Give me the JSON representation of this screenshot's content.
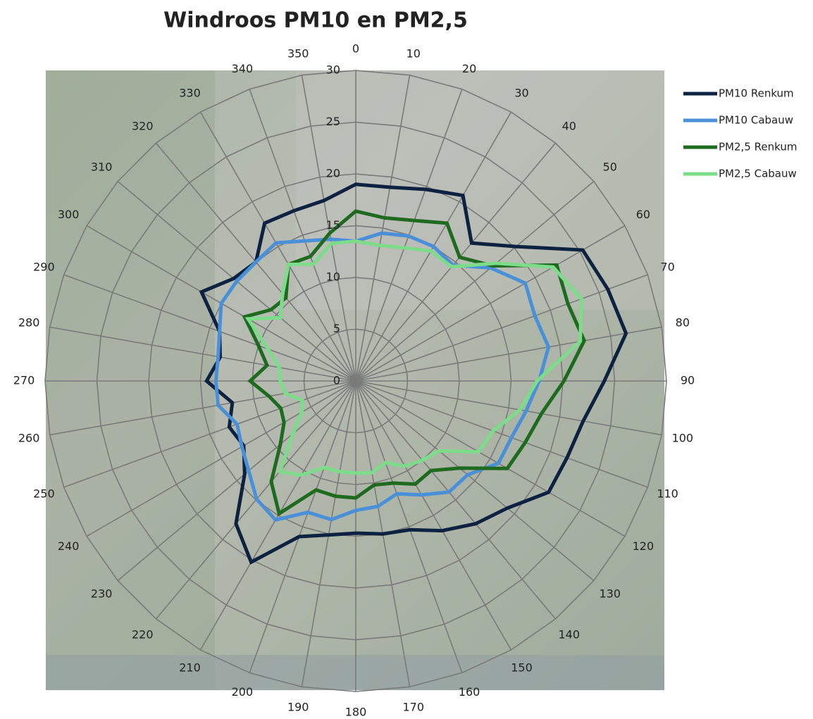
{
  "chart_data": {
    "type": "radar",
    "title": "Windroos PM10 en PM2,5",
    "categories": [
      "0",
      "10",
      "20",
      "30",
      "40",
      "50",
      "60",
      "70",
      "80",
      "90",
      "100",
      "110",
      "120",
      "130",
      "140",
      "150",
      "160",
      "170",
      "180",
      "190",
      "200",
      "210",
      "220",
      "230",
      "240",
      "250",
      "260",
      "270",
      "280",
      "290",
      "300",
      "310",
      "320",
      "330",
      "340",
      "350"
    ],
    "rlim": [
      0,
      30
    ],
    "rticks": [
      0,
      5,
      10,
      15,
      20,
      25,
      30
    ],
    "grid": true,
    "legend": "right",
    "series": [
      {
        "name": "PM10 Renkum",
        "color": "#0d2240",
        "values": [
          19.0,
          19.0,
          19.7,
          20.7,
          17.4,
          20.2,
          25.3,
          25.9,
          26.5,
          24.0,
          22.3,
          21.7,
          21.5,
          19.1,
          18.0,
          16.7,
          15.3,
          15.0,
          14.7,
          15.1,
          16.0,
          20.2,
          18.0,
          14.0,
          12.5,
          13.0,
          12.1,
          14.4,
          13.3,
          14.0,
          17.2,
          15.4,
          15.0,
          17.6,
          17.5,
          17.7
        ]
      },
      {
        "name": "PM10 Cabauw",
        "color": "#4a90d9",
        "values": [
          13.5,
          14.5,
          14.9,
          15.0,
          14.6,
          17.0,
          18.9,
          18.4,
          18.9,
          17.7,
          16.7,
          16.0,
          15.9,
          14.1,
          14.0,
          12.7,
          11.6,
          12.3,
          12.5,
          13.6,
          13.5,
          15.5,
          14.9,
          13.5,
          12.7,
          12.2,
          13.5,
          13.5,
          13.5,
          14.0,
          15.0,
          15.0,
          15.0,
          15.4,
          14.4,
          13.9
        ]
      },
      {
        "name": "PM2,5 Renkum",
        "color": "#1e6b20",
        "values": [
          16.4,
          16.0,
          16.5,
          17.6,
          15.6,
          17.3,
          22.4,
          21.8,
          22.4,
          20.1,
          18.2,
          17.4,
          16.9,
          13.1,
          11.3,
          11.5,
          10.5,
          10.2,
          11.3,
          11.3,
          11.2,
          14.8,
          12.7,
          9.5,
          8.0,
          7.7,
          8.5,
          10.2,
          8.7,
          10.0,
          12.4,
          10.7,
          10.5,
          13.0,
          12.8,
          14.5
        ]
      },
      {
        "name": "PM2,5 Cabauw",
        "color": "#7ddc8a",
        "values": [
          13.5,
          13.3,
          13.7,
          14.5,
          14.4,
          17.7,
          22.0,
          23.2,
          22.0,
          17.5,
          16.1,
          14.1,
          13.7,
          10.5,
          10.0,
          9.5,
          8.4,
          9.0,
          8.9,
          8.9,
          8.9,
          10.5,
          11.4,
          7.9,
          6.0,
          5.5,
          6.9,
          7.3,
          7.5,
          9.0,
          12.0,
          9.5,
          11.0,
          13.0,
          12.0,
          13.5
        ]
      }
    ]
  }
}
